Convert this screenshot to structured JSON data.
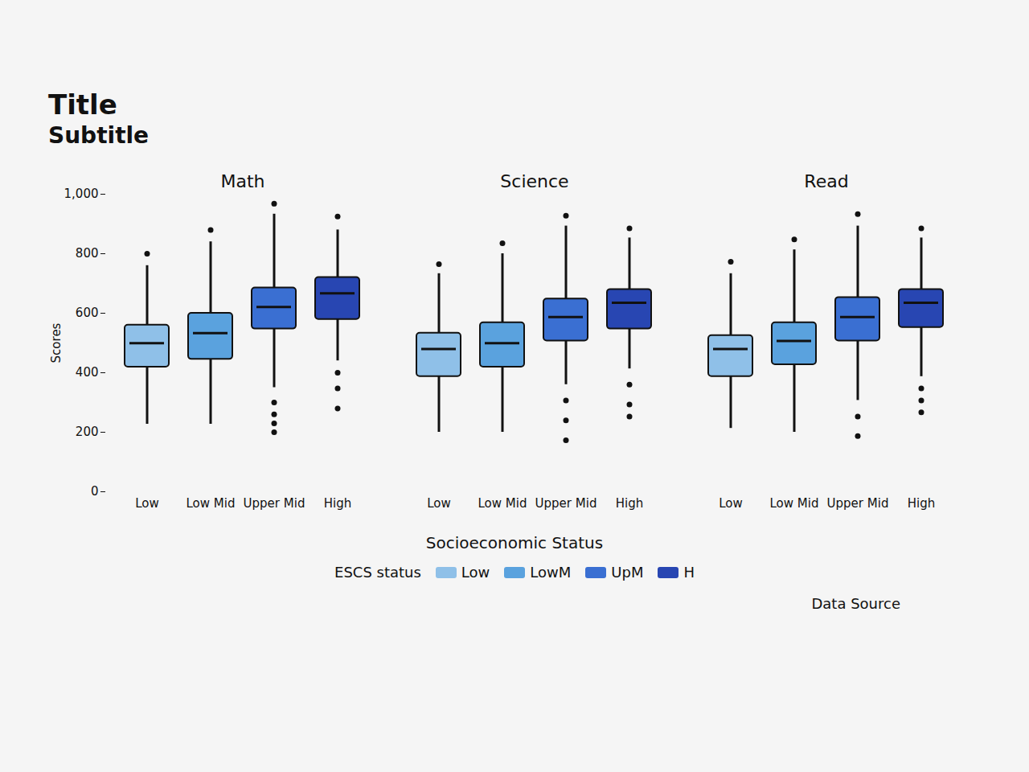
{
  "chart_data": {
    "type": "box",
    "title": "Title",
    "subtitle": "Subtitle",
    "caption": "Data Source",
    "x_label": "Socioeconomic Status",
    "y_label": "Scores",
    "legend_title": "ESCS status",
    "legend": "bottom",
    "facets": [
      "Math",
      "Science",
      "Read"
    ],
    "categories": [
      "Low",
      "Low Mid",
      "Upper Mid",
      "High"
    ],
    "ylim": [
      0,
      1000
    ],
    "yticks": [
      0,
      200,
      400,
      600,
      800,
      1000
    ],
    "series": [
      {
        "name": "Low",
        "color": "#8fc0e8",
        "values": [
          {
            "min": 227,
            "q1": 419,
            "median": 499,
            "q3": 560,
            "max": 760,
            "outliers": [
              800
            ]
          },
          {
            "min": 200,
            "q1": 387,
            "median": 480,
            "q3": 533,
            "max": 733,
            "outliers": [
              765
            ]
          },
          {
            "min": 213,
            "q1": 387,
            "median": 480,
            "q3": 525,
            "max": 733,
            "outliers": [
              773
            ]
          }
        ]
      },
      {
        "name": "LowM",
        "color": "#5aa2de",
        "values": [
          {
            "min": 227,
            "q1": 445,
            "median": 533,
            "q3": 600,
            "max": 840,
            "outliers": [
              880
            ]
          },
          {
            "min": 200,
            "q1": 419,
            "median": 499,
            "q3": 568,
            "max": 800,
            "outliers": [
              835
            ]
          },
          {
            "min": 200,
            "q1": 427,
            "median": 507,
            "q3": 568,
            "max": 813,
            "outliers": [
              848
            ]
          }
        ]
      },
      {
        "name": "UpM",
        "color": "#3a6fd2",
        "values": [
          {
            "min": 350,
            "q1": 547,
            "median": 621,
            "q3": 685,
            "max": 933,
            "outliers": [
              968,
              300,
              260,
              230,
              200
            ]
          },
          {
            "min": 360,
            "q1": 507,
            "median": 587,
            "q3": 648,
            "max": 893,
            "outliers": [
              928,
              307,
              240,
              173
            ]
          },
          {
            "min": 307,
            "q1": 507,
            "median": 587,
            "q3": 653,
            "max": 893,
            "outliers": [
              933,
              253,
              187
            ]
          }
        ]
      },
      {
        "name": "H",
        "color": "#2846b2",
        "values": [
          {
            "min": 440,
            "q1": 579,
            "median": 667,
            "q3": 720,
            "max": 880,
            "outliers": [
              925,
              400,
              347,
              280
            ]
          },
          {
            "min": 413,
            "q1": 547,
            "median": 635,
            "q3": 680,
            "max": 853,
            "outliers": [
              885,
              360,
              293,
              253
            ]
          },
          {
            "min": 387,
            "q1": 552,
            "median": 635,
            "q3": 680,
            "max": 853,
            "outliers": [
              885,
              347,
              307,
              267
            ]
          }
        ]
      }
    ]
  }
}
